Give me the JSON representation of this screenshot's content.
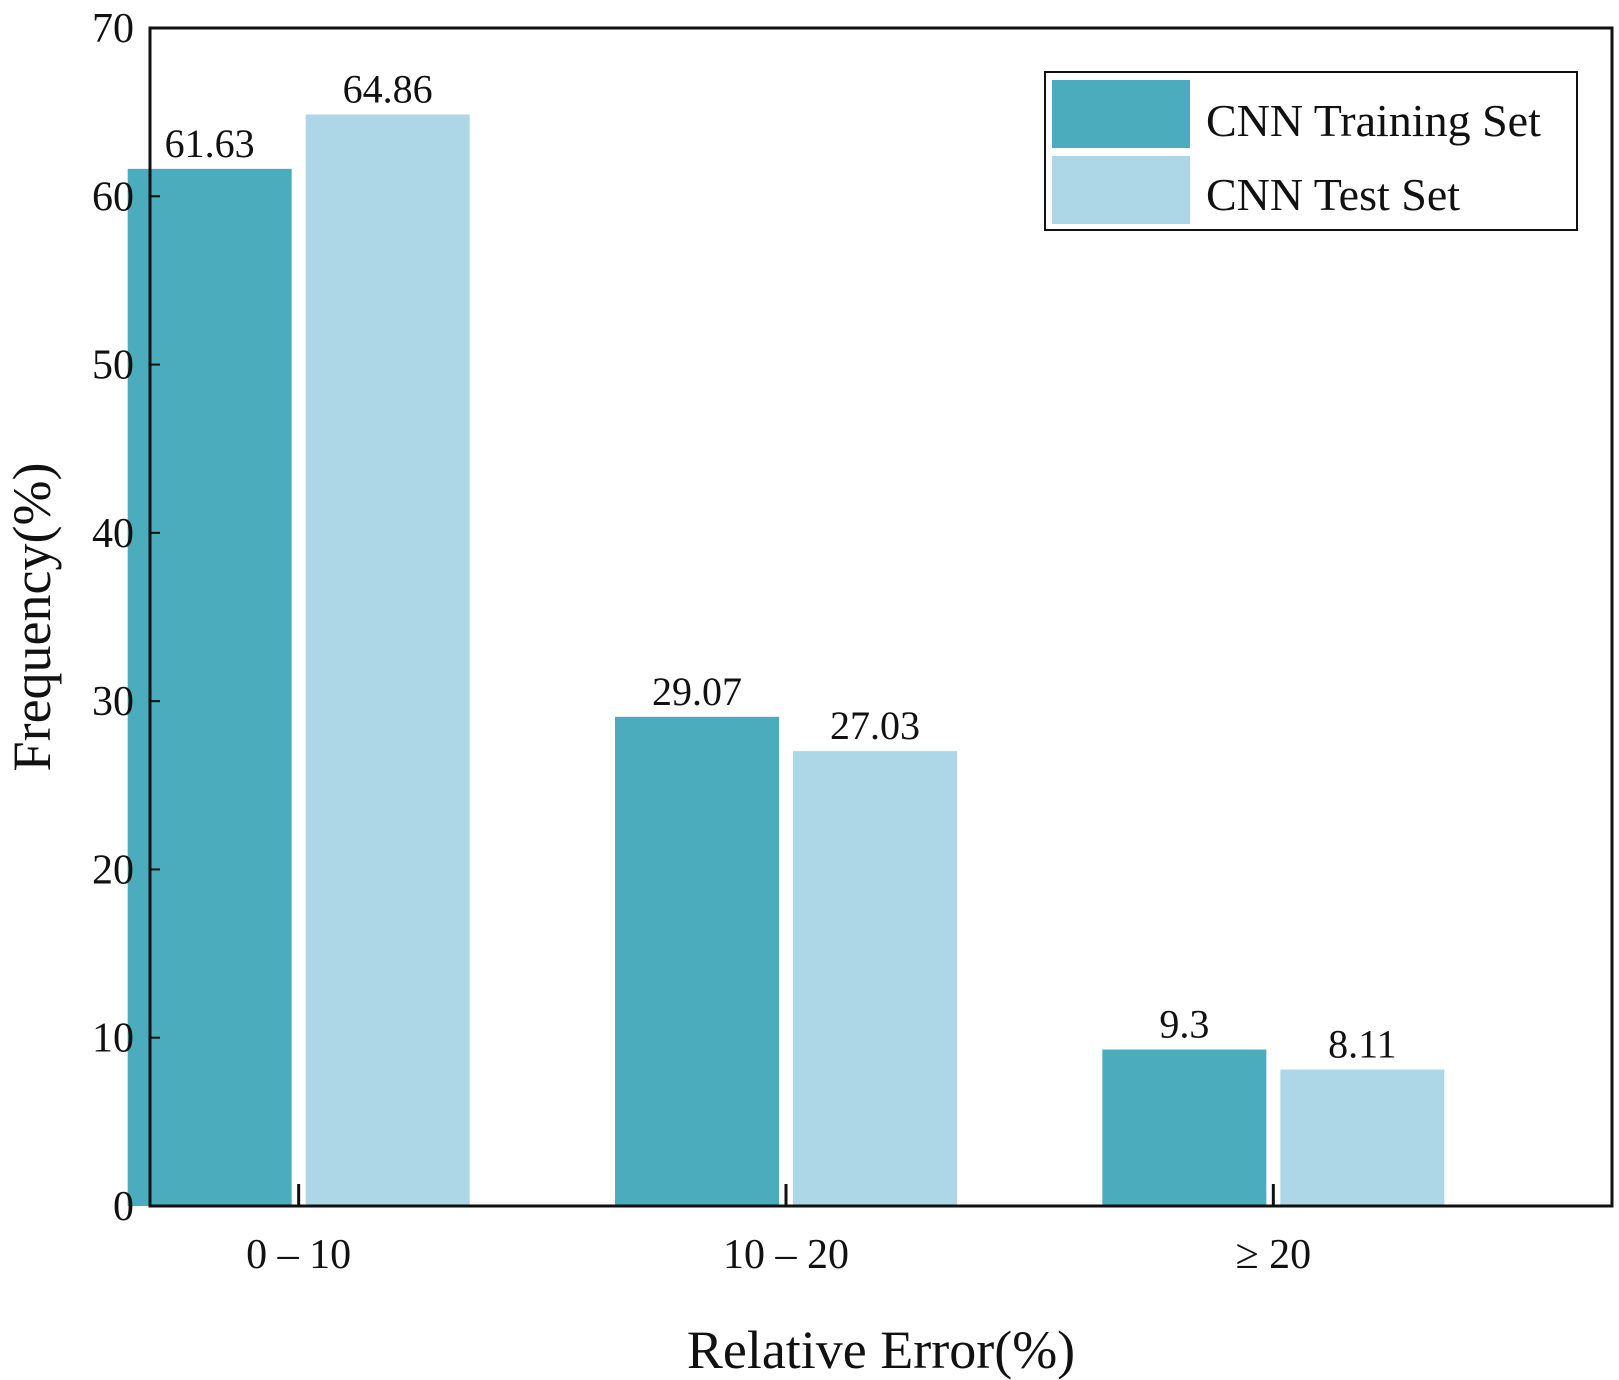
{
  "chart_data": {
    "type": "bar",
    "categories": [
      "0 – 10",
      "10 – 20",
      "≥ 20"
    ],
    "series": [
      {
        "name": "CNN Training Set",
        "values": [
          61.63,
          29.07,
          9.3
        ],
        "labels": [
          "61.63",
          "29.07",
          "9.3"
        ],
        "color": "#4aacbc"
      },
      {
        "name": "CNN Test Set",
        "values": [
          64.86,
          27.03,
          8.11
        ],
        "labels": [
          "64.86",
          "27.03",
          "8.11"
        ],
        "color": "#add6e6"
      }
    ],
    "title": "",
    "xlabel": "Relative Error(%)",
    "ylabel": "Frequency(%)",
    "ylim": [
      0,
      70
    ],
    "yticks": [
      0,
      10,
      20,
      30,
      40,
      50,
      60,
      70
    ],
    "ytick_labels": [
      "0",
      "10",
      "20",
      "30",
      "40",
      "50",
      "60",
      "70"
    ],
    "grid": false,
    "legend_position": "top-right"
  }
}
